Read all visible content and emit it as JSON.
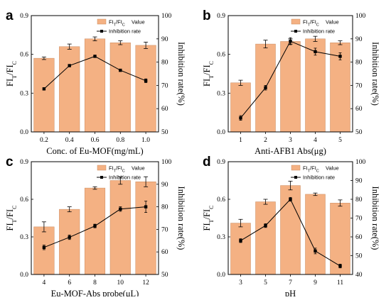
{
  "colors": {
    "bar": "#F4B183",
    "bar_edge": "#C98B60",
    "line": "#000000",
    "axis": "#000000"
  },
  "chart_data": [
    {
      "type": "bar",
      "panel_label": "a",
      "xlabel": "Conc. of Eu-MOF(mg/mL)",
      "ylabel_left": "FIT/FIC",
      "ylabel_right": "Inhibition rate(%)",
      "categories": [
        "0.2",
        "0.4",
        "0.6",
        "0.8",
        "1.0"
      ],
      "ylim_left": [
        0.0,
        0.9
      ],
      "yticks_left": [
        "0.0",
        "0.3",
        "0.6",
        "0.9"
      ],
      "ylim_right": [
        50,
        100
      ],
      "yticks_right": [
        "50",
        "60",
        "70",
        "80",
        "90",
        "100"
      ],
      "series": [
        {
          "name": "FIT/FIC Value",
          "kind": "bar",
          "axis": "left",
          "values": [
            0.57,
            0.66,
            0.72,
            0.69,
            0.67
          ],
          "errors": [
            0.01,
            0.02,
            0.015,
            0.015,
            0.025
          ]
        },
        {
          "name": "Inhibition rate",
          "kind": "line",
          "axis": "right",
          "values": [
            68.5,
            78.5,
            82.5,
            76.5,
            72.0
          ],
          "errors": [
            0.5,
            0.5,
            0.5,
            0.5,
            0.8
          ]
        }
      ],
      "legend": "top-right"
    },
    {
      "type": "bar",
      "panel_label": "b",
      "xlabel": "Anti-AFB1 Abs(μg)",
      "ylabel_left": "FIT/FIC",
      "ylabel_right": "Inhibition rate(%)",
      "categories": [
        "1",
        "2",
        "3",
        "4",
        "5"
      ],
      "ylim_left": [
        0.0,
        0.9
      ],
      "yticks_left": [
        "0.0",
        "0.3",
        "0.6",
        "0.9"
      ],
      "ylim_right": [
        50,
        100
      ],
      "yticks_right": [
        "50",
        "60",
        "70",
        "80",
        "90",
        "100"
      ],
      "series": [
        {
          "name": "FIT/FIC Value",
          "kind": "bar",
          "axis": "left",
          "values": [
            0.38,
            0.68,
            0.7,
            0.72,
            0.69
          ],
          "errors": [
            0.02,
            0.03,
            0.02,
            0.02,
            0.015
          ]
        },
        {
          "name": "Inhibition rate",
          "kind": "line",
          "axis": "right",
          "values": [
            56.0,
            69.0,
            89.0,
            84.5,
            82.5
          ],
          "errors": [
            1.0,
            1.0,
            1.5,
            1.5,
            1.5
          ]
        }
      ],
      "legend": "top-right"
    },
    {
      "type": "bar",
      "panel_label": "c",
      "xlabel": "Eu-MOF-Abs probe(μL)",
      "ylabel_left": "FIT/FIC",
      "ylabel_right": "Inhibition rate(%)",
      "categories": [
        "4",
        "6",
        "8",
        "10",
        "12"
      ],
      "ylim_left": [
        0.0,
        0.9
      ],
      "yticks_left": [
        "0.0",
        "0.3",
        "0.6",
        "0.9"
      ],
      "ylim_right": [
        50,
        100
      ],
      "yticks_right": [
        "50",
        "60",
        "70",
        "80",
        "90",
        "100"
      ],
      "series": [
        {
          "name": "FIT/FIC Value",
          "kind": "bar",
          "axis": "left",
          "values": [
            0.38,
            0.52,
            0.69,
            0.75,
            0.74
          ],
          "errors": [
            0.04,
            0.02,
            0.01,
            0.03,
            0.04
          ]
        },
        {
          "name": "Inhibition rate",
          "kind": "line",
          "axis": "right",
          "values": [
            62.0,
            66.5,
            71.5,
            79.0,
            80.0
          ],
          "errors": [
            1.0,
            1.0,
            0.8,
            1.0,
            2.5
          ]
        }
      ],
      "legend": "top-right"
    },
    {
      "type": "bar",
      "panel_label": "d",
      "xlabel": "pH",
      "ylabel_left": "FIT/FIC",
      "ylabel_right": "Inhibition rate(%)",
      "categories": [
        "3",
        "5",
        "7",
        "9",
        "11"
      ],
      "ylim_left": [
        0.0,
        0.9
      ],
      "yticks_left": [
        "0.0",
        "0.3",
        "0.6",
        "0.9"
      ],
      "ylim_right": [
        40,
        100
      ],
      "yticks_right": [
        "40",
        "50",
        "60",
        "70",
        "80",
        "90",
        "100"
      ],
      "series": [
        {
          "name": "FIT/FIC Value",
          "kind": "bar",
          "axis": "left",
          "values": [
            0.41,
            0.58,
            0.71,
            0.64,
            0.57
          ],
          "errors": [
            0.03,
            0.02,
            0.035,
            0.01,
            0.025
          ]
        },
        {
          "name": "Inhibition rate",
          "kind": "line",
          "axis": "right",
          "values": [
            58.0,
            66.0,
            80.0,
            52.5,
            44.5
          ],
          "errors": [
            1.0,
            1.0,
            1.0,
            1.5,
            1.0
          ]
        }
      ],
      "legend": "top-right"
    }
  ]
}
